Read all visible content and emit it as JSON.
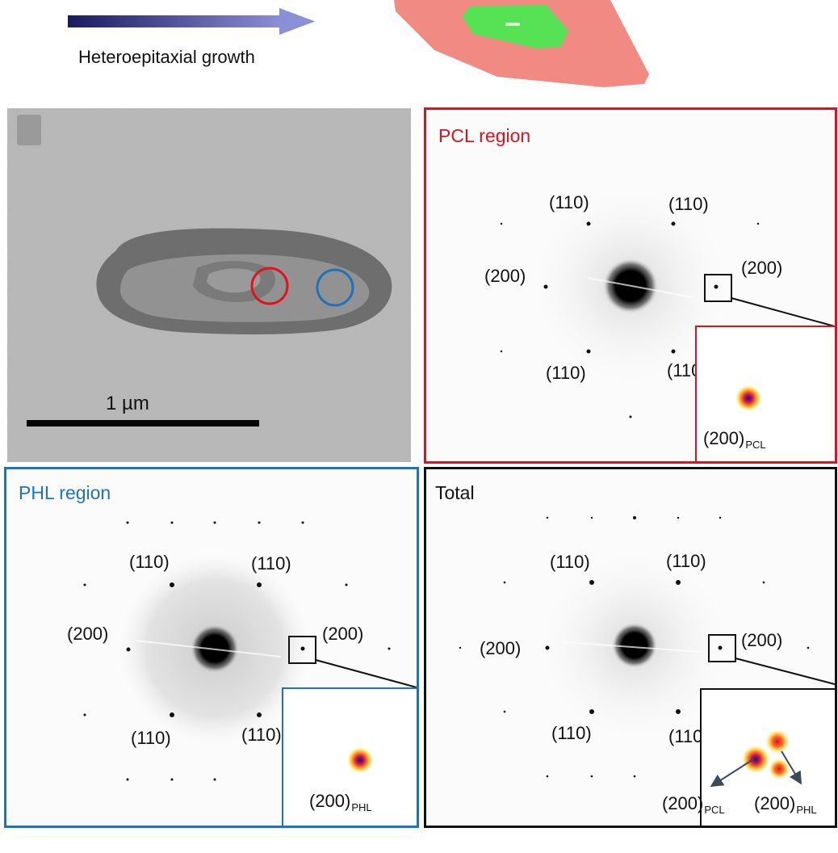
{
  "header": {
    "growth_label": "Heteroepitaxial growth",
    "colors": {
      "arrow_start": "#1a1a5e",
      "arrow_end": "#8a8fd6",
      "lamella_outer": "#f08a82",
      "lamella_inner": "#55e355"
    }
  },
  "tem_panel": {
    "scale_bar_label": "1 µm",
    "colors": {
      "pcl_circle": "#e0141e",
      "phl_circle": "#1f73b7"
    }
  },
  "pcl_panel": {
    "title": "PCL region",
    "labels": [
      "(110)",
      "(110)",
      "(200)",
      "(200)",
      "(110)",
      "(110)"
    ],
    "inset_main": "(200)",
    "inset_sub": "PCL",
    "border_color": "#d9141e"
  },
  "phl_panel": {
    "title": "PHL region",
    "labels": [
      "(110)",
      "(110)",
      "(200)",
      "(200)",
      "(110)",
      "(110)"
    ],
    "inset_main": "(200)",
    "inset_sub": "PHL",
    "border_color": "#1f73b7"
  },
  "total_panel": {
    "title": "Total",
    "labels": [
      "(110)",
      "(110)",
      "(200)",
      "(200)",
      "(110)",
      "(110)"
    ],
    "inset_pcl_main": "(200)",
    "inset_pcl_sub": "PCL",
    "inset_phl_main": "(200)",
    "inset_phl_sub": "PHL",
    "border_color": "#111111"
  }
}
